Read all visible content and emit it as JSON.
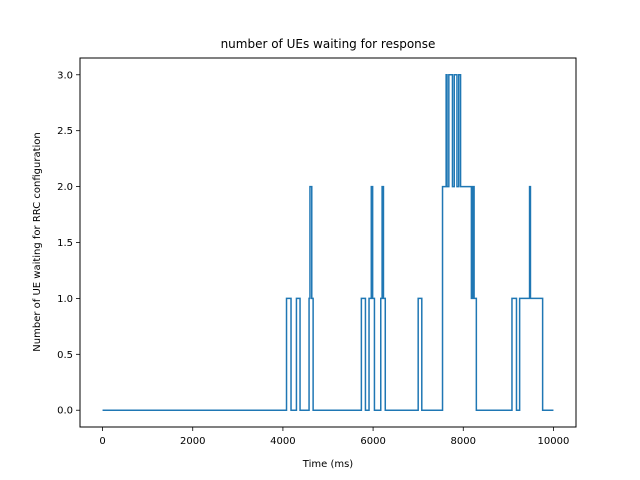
{
  "chart_data": {
    "type": "line",
    "title": "number of UEs waiting for response",
    "xlabel": "Time (ms)",
    "ylabel": "Number of UE waiting for RRC configuration",
    "xlim": [
      -500,
      10500
    ],
    "ylim": [
      -0.15,
      3.15
    ],
    "xticks": [
      0,
      2000,
      4000,
      6000,
      8000,
      10000
    ],
    "xtick_labels": [
      "0",
      "2000",
      "4000",
      "6000",
      "8000",
      "10000"
    ],
    "yticks": [
      0.0,
      0.5,
      1.0,
      1.5,
      2.0,
      2.5,
      3.0
    ],
    "ytick_labels": [
      "0.0",
      "0.5",
      "1.0",
      "1.5",
      "2.0",
      "2.5",
      "3.0"
    ],
    "grid": false,
    "color": "#1f77b4",
    "series": [
      {
        "step": "post",
        "x": [
          0,
          4080,
          4180,
          4300,
          4380,
          4580,
          4600,
          4640,
          4670,
          5740,
          5830,
          5910,
          5960,
          5990,
          6030,
          6170,
          6200,
          6230,
          6270,
          7000,
          7080,
          7540,
          7620,
          7640,
          7680,
          7760,
          7800,
          7860,
          7900,
          7940,
          7960,
          8180,
          8210,
          8240,
          8290,
          9080,
          9180,
          9250,
          9470,
          9490,
          9760,
          10000
        ],
        "y": [
          0,
          1,
          0,
          1,
          0,
          1,
          2,
          1,
          0,
          1,
          0,
          1,
          2,
          1,
          0,
          1,
          2,
          1,
          0,
          1,
          0,
          2,
          3,
          2,
          3,
          2,
          3,
          2,
          3,
          2,
          2,
          1,
          2,
          1,
          0,
          1,
          0,
          1,
          2,
          1,
          0,
          0
        ]
      }
    ]
  }
}
